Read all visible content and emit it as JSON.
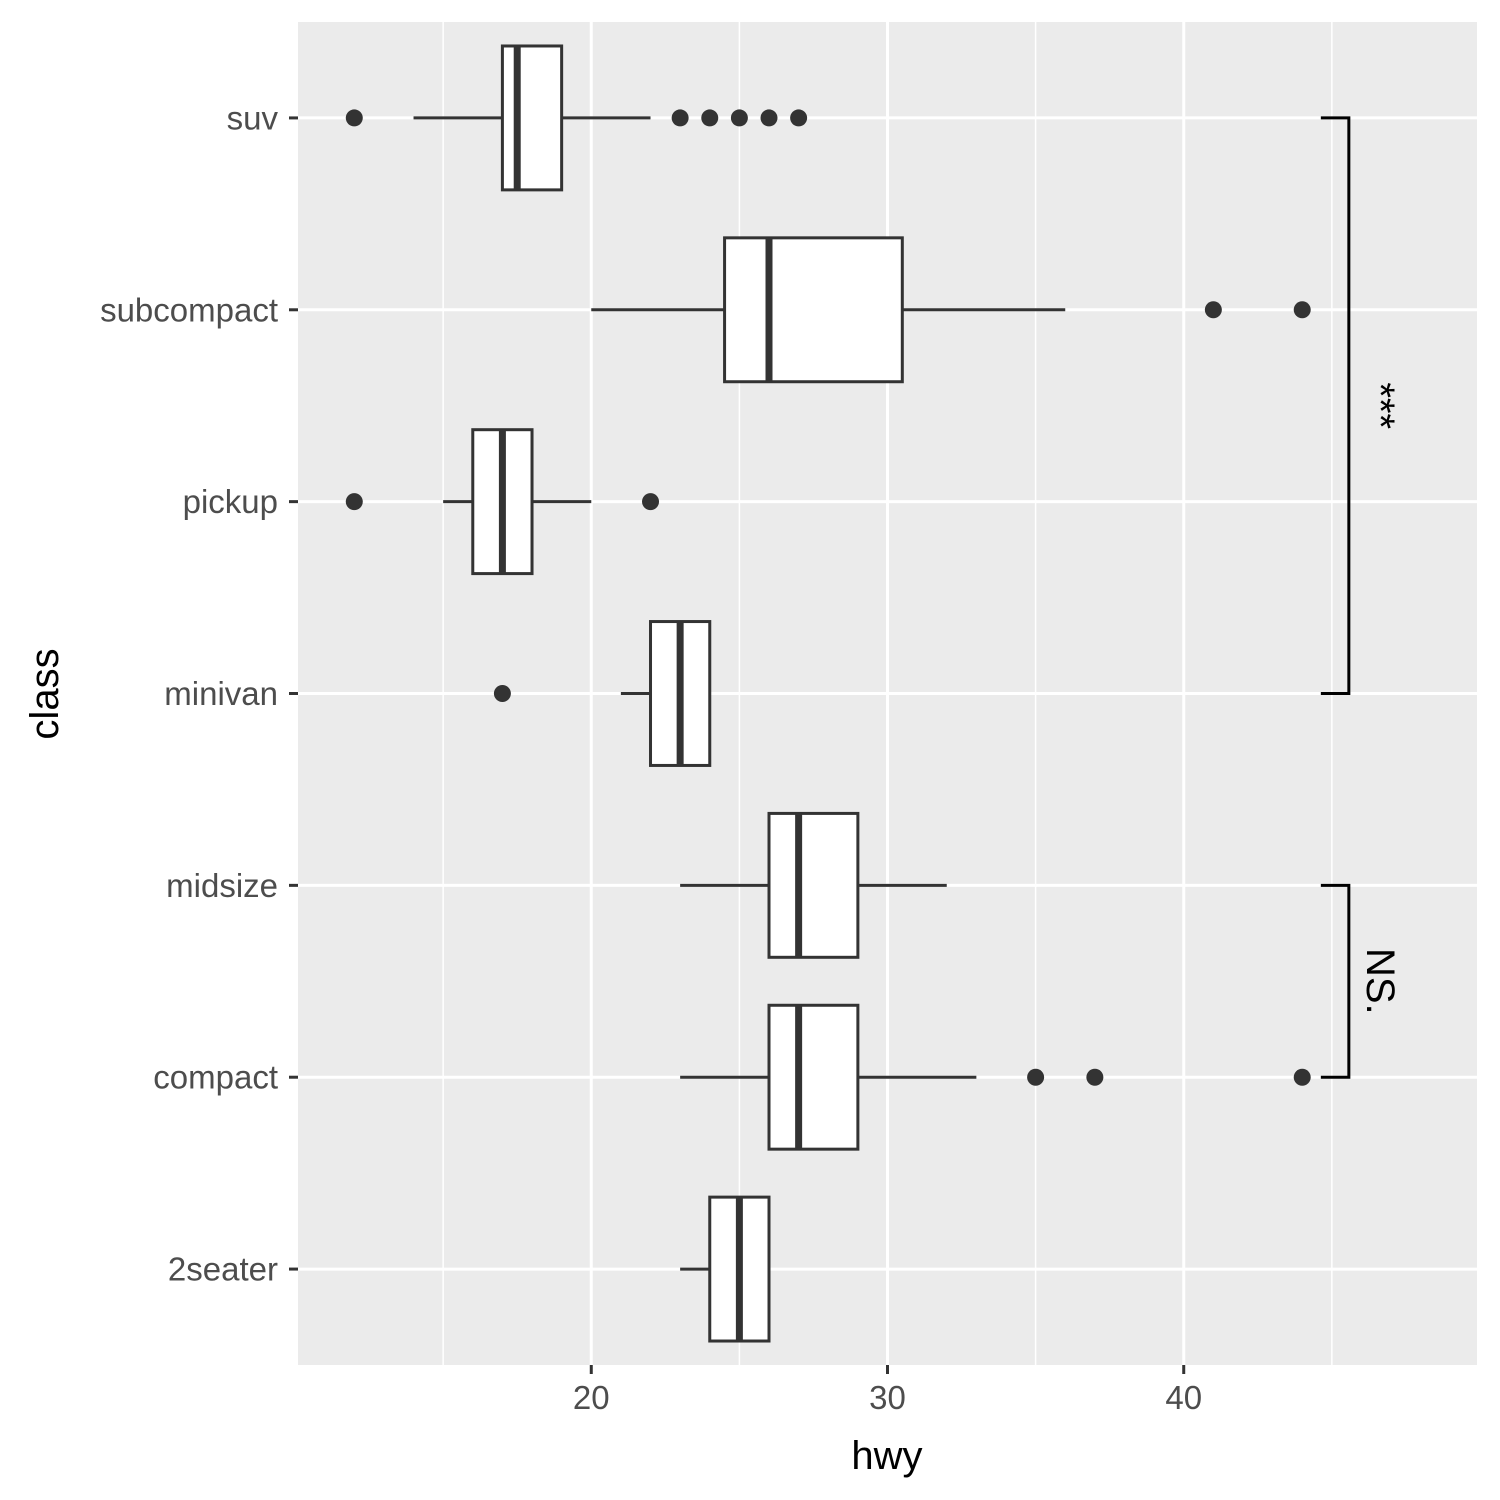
{
  "chart_data": {
    "type": "boxplot",
    "orientation": "horizontal",
    "xlabel": "hwy",
    "ylabel": "class",
    "xlim": [
      10.1,
      49.9
    ],
    "x_ticks": [
      20,
      30,
      40
    ],
    "x_minor_ticks": [
      15,
      25,
      35,
      45
    ],
    "categories": [
      "2seater",
      "compact",
      "midsize",
      "minivan",
      "pickup",
      "subcompact",
      "suv"
    ],
    "grid": true,
    "legend": "none",
    "series": [
      {
        "category": "suv",
        "whisker_low": 14,
        "q1": 17,
        "median": 17.5,
        "q3": 19,
        "whisker_high": 22,
        "outliers": [
          12,
          23,
          24,
          25,
          26,
          27
        ]
      },
      {
        "category": "subcompact",
        "whisker_low": 20,
        "q1": 24.5,
        "median": 26,
        "q3": 30.5,
        "whisker_high": 36,
        "outliers": [
          41,
          44
        ]
      },
      {
        "category": "pickup",
        "whisker_low": 15,
        "q1": 16,
        "median": 17,
        "q3": 18,
        "whisker_high": 20,
        "outliers": [
          12,
          22
        ]
      },
      {
        "category": "minivan",
        "whisker_low": 21,
        "q1": 22,
        "median": 23,
        "q3": 24,
        "whisker_high": 24,
        "outliers": [
          17
        ]
      },
      {
        "category": "midsize",
        "whisker_low": 23,
        "q1": 26,
        "median": 27,
        "q3": 29,
        "whisker_high": 32,
        "outliers": []
      },
      {
        "category": "compact",
        "whisker_low": 23,
        "q1": 26,
        "median": 27,
        "q3": 29,
        "whisker_high": 33,
        "outliers": [
          35,
          37,
          44
        ]
      },
      {
        "category": "2seater",
        "whisker_low": 23,
        "q1": 24,
        "median": 25,
        "q3": 26,
        "whisker_high": 26,
        "outliers": []
      }
    ],
    "comparisons": [
      {
        "from": "minivan",
        "to": "suv",
        "label": "***",
        "x": 45
      },
      {
        "from": "compact",
        "to": "midsize",
        "label": "NS.",
        "x": 45
      }
    ]
  },
  "colors": {
    "panel_background": "#ebebeb",
    "grid": "#ffffff",
    "box_fill": "#ffffff",
    "box_stroke": "#333333",
    "outlier": "#333333",
    "tick_text": "#4d4d4d",
    "axis_ticks": "#333333",
    "annotation": "#000000"
  }
}
